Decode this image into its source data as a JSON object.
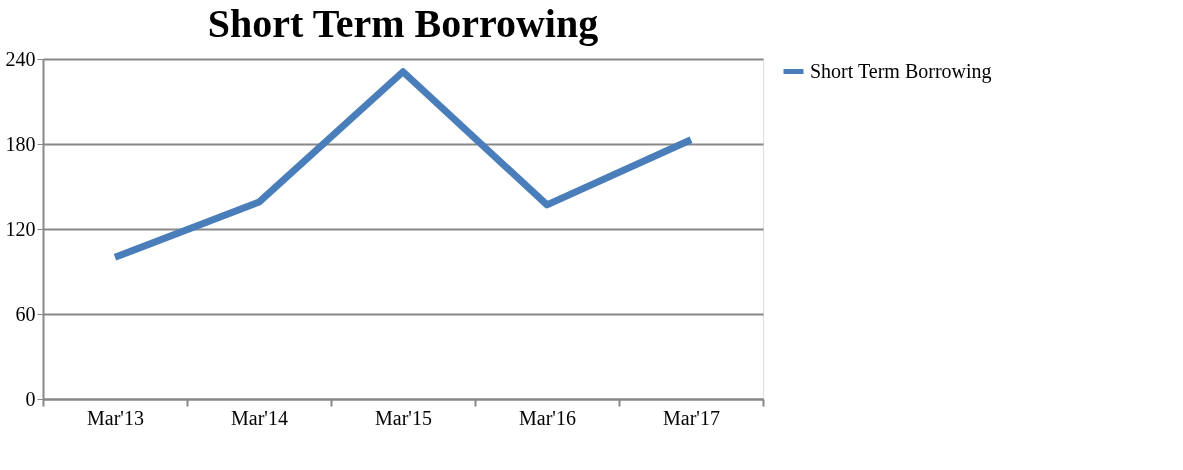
{
  "chart_data": {
    "type": "line",
    "title": "Short Term Borrowing",
    "categories": [
      "Mar'13",
      "Mar'14",
      "Mar'15",
      "Mar'16",
      "Mar'17"
    ],
    "series": [
      {
        "name": "Short Term Borrowing",
        "color": "#4a7ebb",
        "values": [
          100,
          139,
          231,
          137,
          183
        ]
      }
    ],
    "ylim": [
      0,
      240
    ],
    "yticks": [
      0,
      60,
      120,
      180,
      240
    ],
    "grid": "y",
    "legend": "right",
    "marker": "none",
    "line_style": "solid"
  }
}
